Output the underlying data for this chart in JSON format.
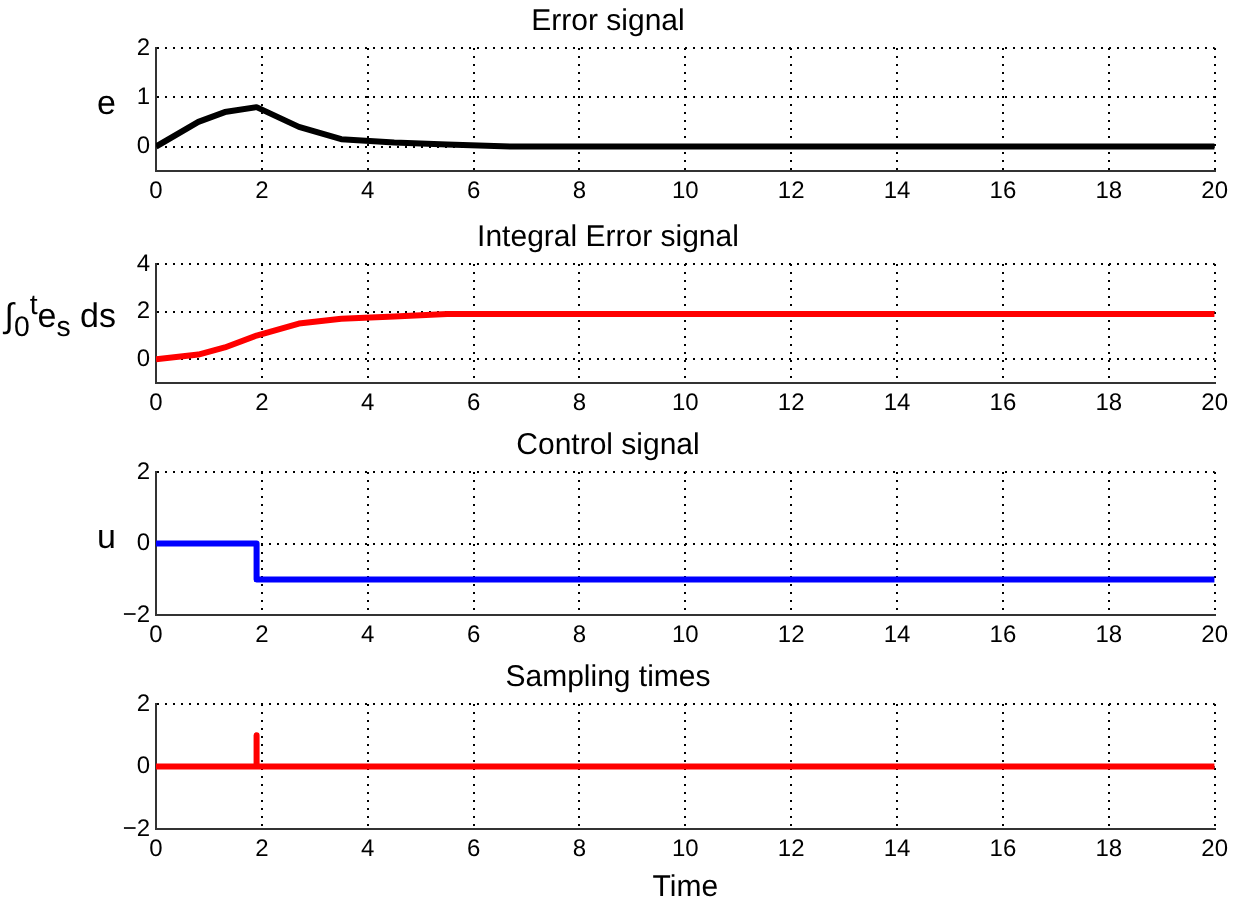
{
  "chart_data": [
    {
      "type": "line",
      "title": "Error signal",
      "ylabel": "e",
      "x": [
        0,
        0.8,
        1.3,
        1.9,
        2.7,
        3.5,
        4.5,
        5.5,
        6.7,
        8,
        20
      ],
      "series": [
        {
          "color": "#000000",
          "values": [
            0,
            0.5,
            0.7,
            0.8,
            0.4,
            0.15,
            0.08,
            0.04,
            0,
            0,
            0
          ]
        }
      ],
      "xlim": [
        0,
        20
      ],
      "xticks": [
        0,
        2,
        4,
        6,
        8,
        10,
        12,
        14,
        16,
        18,
        20
      ],
      "ylim": [
        -0.5,
        2
      ],
      "yticks": [
        0,
        1,
        2
      ],
      "grid": true
    },
    {
      "type": "line",
      "title": "Integral Error signal",
      "ylabel": "∫$_{0}$$^{t}$e$_{s}$ ds",
      "x": [
        0,
        0.8,
        1.3,
        1.9,
        2.7,
        3.5,
        4.5,
        5.5,
        20
      ],
      "series": [
        {
          "color": "#ff0000",
          "values": [
            0,
            0.2,
            0.5,
            1,
            1.5,
            1.7,
            1.8,
            1.9,
            1.9
          ]
        }
      ],
      "xlim": [
        0,
        20
      ],
      "xticks": [
        0,
        2,
        4,
        6,
        8,
        10,
        12,
        14,
        16,
        18,
        20
      ],
      "ylim": [
        -1,
        4
      ],
      "yticks": [
        0,
        2,
        4
      ],
      "grid": true
    },
    {
      "type": "line",
      "title": "Control signal",
      "ylabel": "u",
      "x": [
        0,
        1.9,
        1.9,
        20
      ],
      "series": [
        {
          "color": "#0000ff",
          "values": [
            0,
            0,
            -1,
            -1
          ]
        }
      ],
      "xlim": [
        0,
        20
      ],
      "xticks": [
        0,
        2,
        4,
        6,
        8,
        10,
        12,
        14,
        16,
        18,
        20
      ],
      "ylim": [
        -2,
        2
      ],
      "yticks": [
        -2,
        0,
        2
      ],
      "grid": true
    },
    {
      "type": "line",
      "title": "Sampling times",
      "xlabel": "Time",
      "x": [
        0,
        1.9,
        1.9,
        1.9,
        20
      ],
      "series": [
        {
          "color": "#ff0000",
          "values": [
            0,
            0,
            1,
            0,
            0
          ]
        }
      ],
      "xlim": [
        0,
        20
      ],
      "xticks": [
        0,
        2,
        4,
        6,
        8,
        10,
        12,
        14,
        16,
        18,
        20
      ],
      "ylim": [
        -2,
        2
      ],
      "yticks": [
        -2,
        0,
        2
      ],
      "grid": true
    }
  ]
}
